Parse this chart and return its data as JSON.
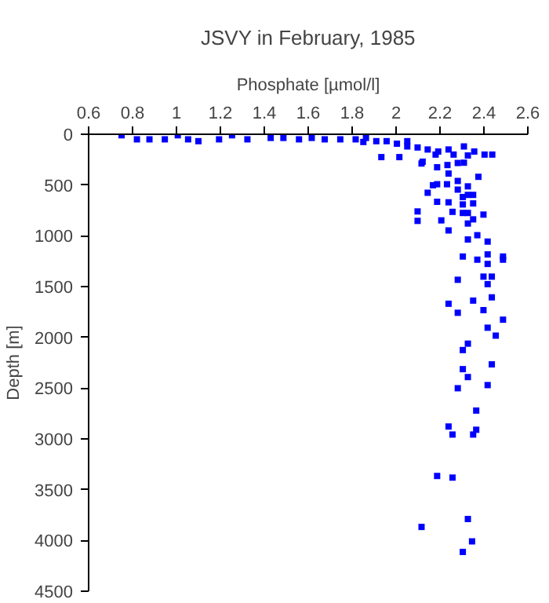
{
  "chart_data": {
    "type": "scatter",
    "title": "JSVY in February, 1985",
    "xlabel": "Phosphate [µmol/l]",
    "ylabel": "Depth [m]",
    "xlim": [
      0.6,
      2.6
    ],
    "xticks": [
      0.6,
      0.8,
      1,
      1.2,
      1.4,
      1.6,
      1.8,
      2,
      2.2,
      2.4,
      2.6
    ],
    "ylim": [
      4500,
      0
    ],
    "yticks": [
      0,
      500,
      1000,
      1500,
      2000,
      2500,
      3000,
      3500,
      4000,
      4500
    ],
    "grid": false,
    "marker": "square",
    "series": [
      {
        "color": "#0000ff",
        "x": [
          0.75,
          0.82,
          0.877,
          0.947,
          1.006,
          1.053,
          1.1,
          1.194,
          1.253,
          1.323,
          1.429,
          1.487,
          1.558,
          1.616,
          1.675,
          1.746,
          1.816,
          1.851,
          1.91,
          1.933,
          2.004,
          2.015,
          2.051,
          2.098,
          2.144,
          2.121,
          2.18,
          2.239,
          2.262,
          2.309,
          2.309,
          2.356,
          2.403,
          2.438,
          2.192,
          2.051,
          1.957,
          1.863,
          2.116,
          2.187,
          2.234,
          2.281,
          2.327,
          2.375,
          2.239,
          2.281,
          2.187,
          2.168,
          2.144,
          2.281,
          2.327,
          2.327,
          2.232,
          2.304,
          2.351,
          2.187,
          2.239,
          2.351,
          2.304,
          2.098,
          2.257,
          2.304,
          2.327,
          2.398,
          2.098,
          2.206,
          2.351,
          2.327,
          2.239,
          2.37,
          2.327,
          2.417,
          2.487,
          2.304,
          2.37,
          2.417,
          2.417,
          2.487,
          2.398,
          2.436,
          2.281,
          2.417,
          2.436,
          2.351,
          2.239,
          2.281,
          2.398,
          2.487,
          2.417,
          2.454,
          2.327,
          2.304,
          2.436,
          2.304,
          2.327,
          2.417,
          2.281,
          2.365,
          2.365,
          2.239,
          2.257,
          2.351,
          2.187,
          2.257,
          2.327,
          2.116,
          2.346,
          2.304
        ],
        "values": [
          10,
          50,
          50,
          50,
          10,
          50,
          68,
          50,
          10,
          50,
          36,
          36,
          50,
          36,
          50,
          50,
          50,
          76,
          68,
          225,
          93,
          225,
          120,
          130,
          150,
          270,
          200,
          150,
          200,
          120,
          280,
          170,
          200,
          200,
          170,
          68,
          68,
          36,
          288,
          325,
          303,
          283,
          209,
          419,
          387,
          460,
          492,
          502,
          576,
          545,
          513,
          597,
          492,
          618,
          597,
          665,
          670,
          681,
          691,
          760,
          764,
          775,
          775,
          791,
          853,
          848,
          838,
          879,
          947,
          994,
          1036,
          1057,
          1204,
          1204,
          1235,
          1183,
          1277,
          1235,
          1402,
          1402,
          1433,
          1476,
          1606,
          1638,
          1669,
          1758,
          1732,
          1826,
          1905,
          1983,
          2062,
          2125,
          2266,
          2313,
          2391,
          2470,
          2501,
          2721,
          2910,
          2878,
          2957,
          2957,
          3365,
          3381,
          3789,
          3867,
          4009,
          4113
        ]
      }
    ]
  }
}
